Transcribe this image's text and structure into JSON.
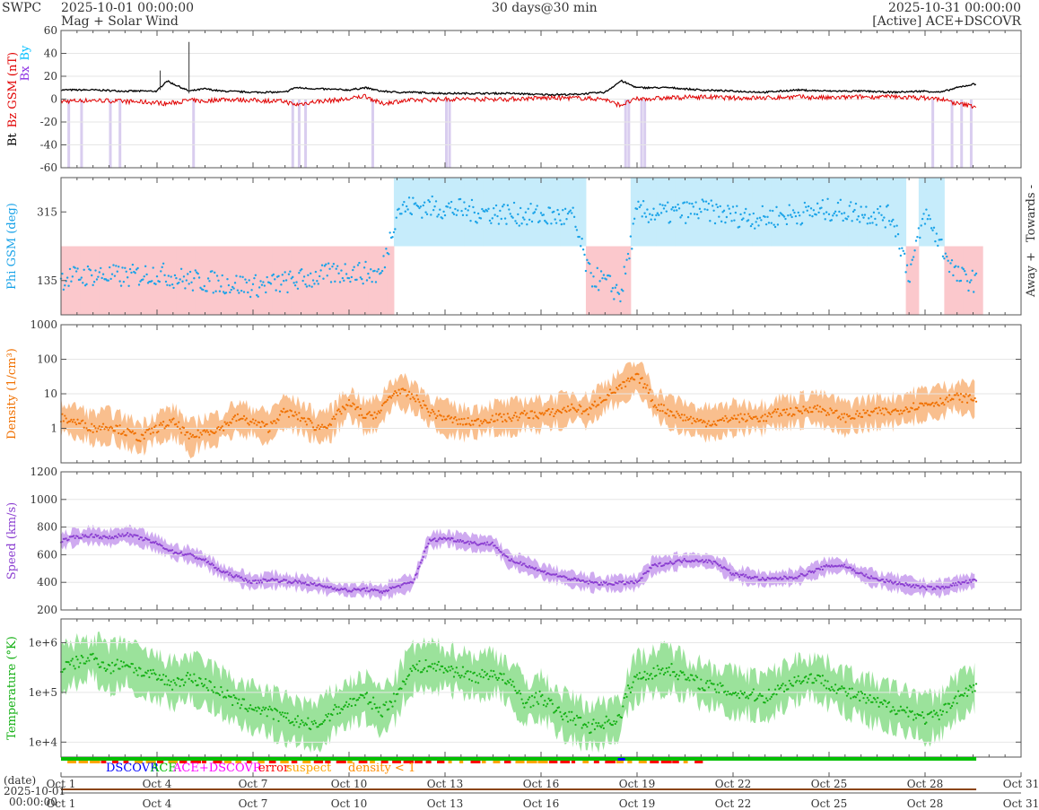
{
  "header": {
    "source": "SWPC",
    "start": "2025-10-01 00:00:00",
    "subtitle": "Mag + Solar Wind",
    "span": "30 days@30 min",
    "end": "2025-10-31 00:00:00",
    "mode": "[Active] ACE+DSCOVR"
  },
  "colors": {
    "bt": "#000000",
    "bz": "#e00000",
    "bx": "#8a2be2",
    "by": "#00bfff",
    "phi": "#1aa3e8",
    "phi_towards_bg": "#c6ecfb",
    "phi_away_bg": "#fbc8cc",
    "density": "#f07000",
    "density_band": "#f9bf8e",
    "speed": "#8b3fd1",
    "speed_band": "#cfaaf0",
    "temperature": "#14b014",
    "temperature_band": "#9be29b",
    "dscovr": "#0000ff",
    "ace": "#00c000",
    "ace_dscovr": "#ff00ff",
    "error": "#ff0000",
    "suspect": "#ffa500",
    "density_lt1": "#ff8c00"
  },
  "chart_data": [
    {
      "name": "mag",
      "type": "line",
      "ylabel_parts": [
        "Bt",
        "Bz GSM (nT)",
        "Bx",
        "By"
      ],
      "ylim": [
        -60,
        60
      ],
      "yticks": [
        "60",
        "40",
        "20",
        "0",
        "-20",
        "-40",
        "-60"
      ],
      "x_days": [
        0,
        1,
        2,
        3,
        3.3,
        4,
        4.5,
        5,
        6,
        7,
        7.3,
        8,
        9,
        9.5,
        10,
        10.5,
        11,
        12,
        13,
        14,
        15,
        16,
        17,
        17.3,
        17.5,
        18,
        19,
        20,
        21,
        22,
        23,
        24,
        25,
        26,
        27,
        27.5,
        28,
        28.5
      ],
      "bt": [
        8,
        8,
        7,
        7,
        16,
        7,
        9,
        7,
        6,
        6,
        10,
        9,
        8,
        10,
        7,
        6,
        6,
        5,
        5,
        5,
        4,
        4,
        6,
        12,
        16,
        10,
        10,
        8,
        7,
        6,
        8,
        7,
        7,
        6,
        7,
        6,
        10,
        13
      ],
      "bz": [
        -2,
        -1,
        -2,
        -3,
        -4,
        -1,
        -2,
        0,
        -1,
        -2,
        -5,
        -2,
        0,
        3,
        -4,
        -2,
        -1,
        0,
        0,
        0,
        1,
        1,
        0,
        -4,
        -5,
        0,
        1,
        2,
        1,
        1,
        2,
        1,
        2,
        2,
        1,
        0,
        -4,
        -6
      ],
      "shading": "bz_south"
    },
    {
      "name": "phi",
      "type": "scatter",
      "ylabel": "Phi GSM (deg)",
      "ylim": [
        45,
        405
      ],
      "yticks": [
        "315",
        "135"
      ],
      "right_labels": [
        "Towards -",
        "Away +"
      ],
      "x_days": [
        0,
        1,
        2,
        3,
        4,
        5,
        6,
        7,
        8,
        9,
        10,
        10.5,
        11,
        12,
        13,
        14,
        15,
        16,
        16.5,
        17,
        17.5,
        18,
        19,
        20,
        21,
        22,
        23,
        24,
        25,
        26,
        26.5,
        27,
        28,
        28.5
      ],
      "values": [
        140,
        150,
        145,
        155,
        135,
        130,
        120,
        130,
        145,
        160,
        150,
        320,
        330,
        325,
        315,
        310,
        305,
        300,
        150,
        130,
        100,
        315,
        310,
        320,
        305,
        300,
        310,
        320,
        315,
        300,
        150,
        310,
        145,
        135
      ]
    },
    {
      "name": "density",
      "type": "line",
      "ylabel": "Density (1/cm³)",
      "scale": "log",
      "ylim": [
        0.1,
        1000
      ],
      "yticks": [
        "1000",
        "100",
        "10",
        "1"
      ],
      "x_days": [
        0,
        0.5,
        1,
        1.5,
        2,
        2.5,
        3,
        3.5,
        4,
        4.5,
        5,
        5.5,
        6,
        6.5,
        7,
        7.5,
        8,
        8.5,
        9,
        9.5,
        10,
        10.5,
        11,
        11.5,
        12,
        12.5,
        13,
        13.5,
        14,
        14.5,
        15,
        15.5,
        16,
        16.5,
        17,
        17.5,
        18,
        18.5,
        19,
        19.5,
        20,
        20.5,
        21,
        21.5,
        22,
        22.5,
        23,
        23.5,
        24,
        24.5,
        25,
        25.5,
        26,
        26.5,
        27,
        27.5,
        28,
        28.5
      ],
      "values": [
        2,
        1.5,
        1,
        1.2,
        0.8,
        0.5,
        1,
        1.5,
        0.5,
        0.8,
        1,
        2,
        1.5,
        1,
        3,
        2,
        1,
        1.5,
        5,
        2,
        3,
        12,
        8,
        3,
        2,
        1.5,
        1.5,
        2,
        2,
        2.5,
        2.5,
        3,
        4,
        3,
        8,
        15,
        30,
        5,
        3,
        2,
        1.5,
        1.5,
        2,
        2,
        2,
        3,
        3,
        4,
        3,
        2,
        2.5,
        3,
        3,
        4,
        5,
        6,
        8,
        7
      ],
      "band_factor": 2.5
    },
    {
      "name": "speed",
      "type": "line",
      "ylabel": "Speed (km/s)",
      "ylim": [
        200,
        1200
      ],
      "yticks": [
        "1200",
        "1000",
        "800",
        "600",
        "400",
        "200"
      ],
      "x_days": [
        0,
        0.5,
        1,
        1.5,
        2,
        2.5,
        3,
        3.5,
        4,
        4.5,
        5,
        5.5,
        6,
        6.5,
        7,
        7.5,
        8,
        8.5,
        9,
        9.5,
        10,
        10.5,
        11,
        11.5,
        12,
        12.5,
        13,
        13.5,
        14,
        14.5,
        15,
        15.5,
        16,
        16.5,
        17,
        17.5,
        18,
        18.5,
        19,
        19.5,
        20,
        20.5,
        21,
        21.5,
        22,
        22.5,
        23,
        23.5,
        24,
        24.5,
        25,
        25.5,
        26,
        26.5,
        27,
        27.5,
        28,
        28.5
      ],
      "values": [
        700,
        730,
        740,
        720,
        750,
        720,
        680,
        620,
        600,
        560,
        480,
        440,
        400,
        420,
        410,
        400,
        380,
        360,
        340,
        350,
        330,
        370,
        400,
        700,
        720,
        700,
        680,
        680,
        560,
        530,
        480,
        450,
        420,
        400,
        390,
        395,
        400,
        520,
        540,
        560,
        560,
        540,
        460,
        440,
        420,
        430,
        440,
        480,
        520,
        520,
        460,
        420,
        400,
        380,
        360,
        360,
        390,
        410
      ],
      "band": 40
    },
    {
      "name": "temperature",
      "type": "line",
      "ylabel": "Temperature (°K)",
      "scale": "log",
      "ylim": [
        5000,
        3000000
      ],
      "yticks": [
        "1e+6",
        "1e+5",
        "1e+4"
      ],
      "x_days": [
        0,
        0.5,
        1,
        1.5,
        2,
        2.5,
        3,
        3.5,
        4,
        4.5,
        5,
        5.5,
        6,
        6.5,
        7,
        7.5,
        8,
        8.5,
        9,
        9.5,
        10,
        10.5,
        11,
        11.5,
        12,
        12.5,
        13,
        13.5,
        14,
        14.5,
        15,
        15.5,
        16,
        16.5,
        17,
        17.5,
        18,
        18.5,
        19,
        19.5,
        20,
        20.5,
        21,
        21.5,
        22,
        22.5,
        23,
        23.5,
        24,
        24.5,
        25,
        25.5,
        26,
        26.5,
        27,
        27.5,
        28,
        28.5
      ],
      "values": [
        300000,
        400000,
        500000,
        300000,
        400000,
        250000,
        200000,
        150000,
        200000,
        150000,
        100000,
        60000,
        50000,
        40000,
        30000,
        25000,
        20000,
        40000,
        60000,
        80000,
        40000,
        80000,
        300000,
        350000,
        300000,
        250000,
        200000,
        250000,
        150000,
        60000,
        80000,
        40000,
        30000,
        20000,
        25000,
        30000,
        200000,
        250000,
        300000,
        200000,
        150000,
        120000,
        100000,
        90000,
        80000,
        120000,
        180000,
        200000,
        150000,
        100000,
        80000,
        60000,
        50000,
        40000,
        30000,
        35000,
        80000,
        120000
      ]
    }
  ],
  "flags": {
    "legend": [
      "DSCOVR",
      "ACE",
      "ACE+DSCOVR",
      "error",
      "suspect",
      "density < 1"
    ]
  },
  "xaxis": {
    "date_label": "(date)",
    "start_date": "2025-10-01",
    "start_time": "00:00:00",
    "days": 30,
    "data_end_day": 28.6,
    "ticks": [
      "Oct 1",
      "Oct 4",
      "Oct 7",
      "Oct 10",
      "Oct 13",
      "Oct 16",
      "Oct 19",
      "Oct 22",
      "Oct 25",
      "Oct 28",
      "Oct 31"
    ],
    "tick_days": [
      0,
      3,
      6,
      9,
      12,
      15,
      18,
      21,
      24,
      27,
      30
    ]
  }
}
